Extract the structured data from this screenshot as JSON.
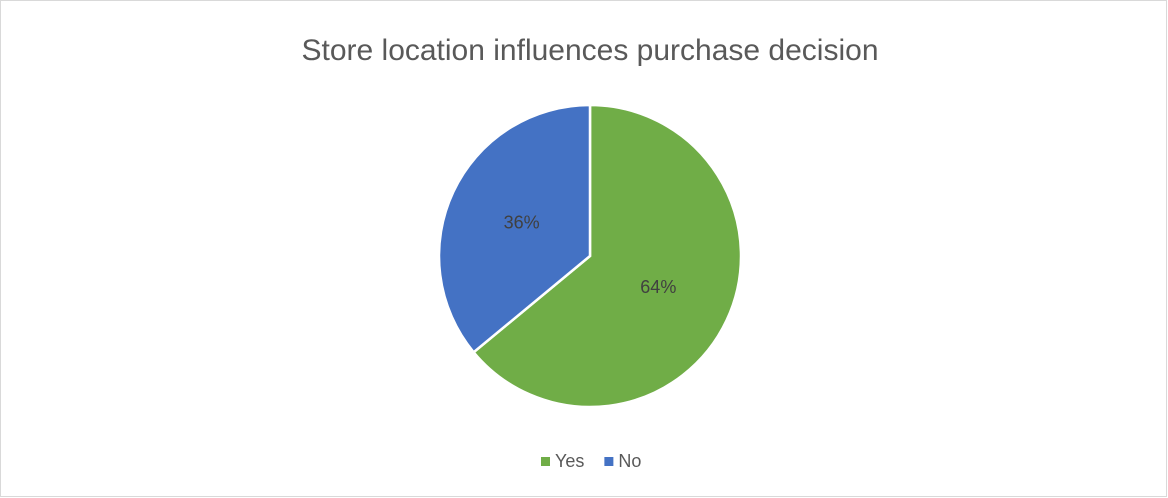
{
  "chart_data": {
    "type": "pie",
    "title": "Store location influences purchase decision",
    "categories": [
      "Yes",
      "No"
    ],
    "values": [
      64,
      36
    ],
    "value_labels": [
      "64%",
      "36%"
    ],
    "colors": [
      "#70ad47",
      "#4472c4"
    ],
    "legend": "bottom"
  }
}
